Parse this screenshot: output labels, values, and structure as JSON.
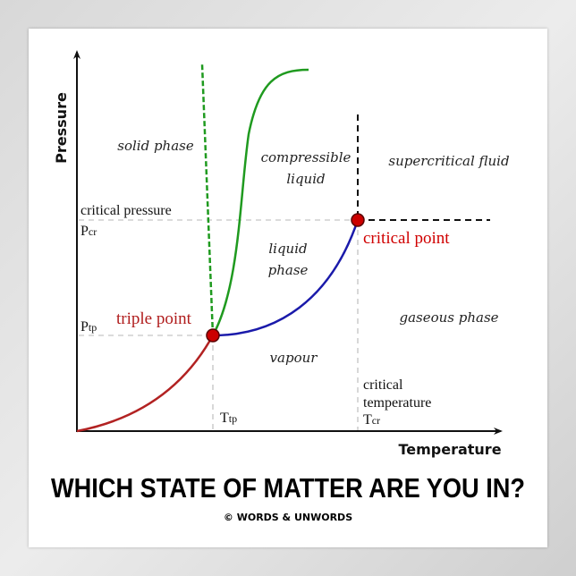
{
  "diagram": {
    "axes": {
      "y_label": "Pressure",
      "x_label": "Temperature"
    },
    "regions": {
      "solid": "solid phase",
      "compressible": [
        "compressible",
        "liquid"
      ],
      "supercritical": "supercritical fluid",
      "liquid": [
        "liquid",
        "phase"
      ],
      "gaseous": "gaseous phase",
      "vapour": "vapour"
    },
    "labels": {
      "critical_pressure": "critical pressure",
      "pcr": {
        "main": "P",
        "sub": "cr"
      },
      "ptp": {
        "main": "P",
        "sub": "tp"
      },
      "ttp": {
        "main": "T",
        "sub": "tp"
      },
      "tcr": {
        "main": "T",
        "sub": "cr"
      },
      "critical_temperature": [
        "critical",
        "temperature"
      ],
      "triple_point": "triple point",
      "critical_point": "critical point"
    },
    "colors": {
      "sublimation_curve": "#b22222",
      "vaporization_curve": "#1a1aaa",
      "melting_curve": "#1f9a1f",
      "triple_point_label": "#b01c1c",
      "critical_point_label": "#d00000",
      "point_fill": "#cc0000"
    }
  },
  "footer": {
    "title": "WHICH STATE OF MATTER ARE YOU IN?",
    "copyright": "© WORDS & UNWORDS"
  }
}
